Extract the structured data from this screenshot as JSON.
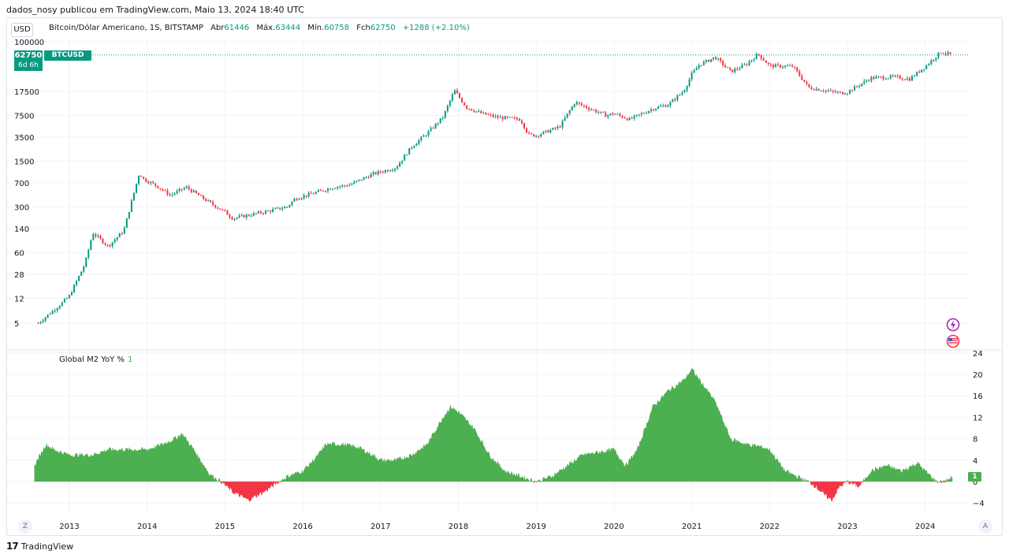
{
  "caption": "dados_nosy publicou em TradingView.com, Maio 13, 2024 18:40 UTC",
  "currency": "USD",
  "legend": {
    "name": "Bitcoin/Dólar Americano, 1S, BITSTAMP",
    "open_label": "Abr",
    "open": "61446",
    "high_label": "Máx.",
    "high": "63444",
    "low_label": "Mín.",
    "low": "60758",
    "close_label": "Fch",
    "close": "62750",
    "change": "+1288 (+2.10%)"
  },
  "price_tag": {
    "value": "62750",
    "countdown": "6d 6h",
    "symbol": "BTCUSD"
  },
  "indicator": {
    "name": "Global M2 YoY %",
    "value": "1",
    "tag": "1"
  },
  "zoom_left": "Z",
  "zoom_right": "A",
  "footer": {
    "logo": "17",
    "brand": "TradingView"
  },
  "colors": {
    "up": "#089981",
    "down": "#f23645",
    "m2_pos": "#4caf50",
    "m2_neg": "#f23645",
    "grid": "#f0f3fa"
  },
  "chart_data": [
    {
      "type": "line",
      "title": "",
      "series": [
        {
          "name": "BTCUSD",
          "x": [
            2012.6,
            2012.9,
            2013.0,
            2013.2,
            2013.3,
            2013.5,
            2013.7,
            2013.9,
            2013.95,
            2014.1,
            2014.3,
            2014.5,
            2014.8,
            2015.0,
            2015.1,
            2015.5,
            2015.8,
            2015.9,
            2016.4,
            2016.6,
            2016.9,
            2017.2,
            2017.4,
            2017.6,
            2017.8,
            2017.95,
            2018.1,
            2018.3,
            2018.5,
            2018.8,
            2018.9,
            2019.0,
            2019.3,
            2019.5,
            2019.6,
            2019.9,
            2020.0,
            2020.2,
            2020.5,
            2020.7,
            2020.9,
            2021.0,
            2021.1,
            2021.3,
            2021.5,
            2021.7,
            2021.85,
            2022.0,
            2022.3,
            2022.5,
            2022.9,
            2023.0,
            2023.3,
            2023.6,
            2023.8,
            2024.0,
            2024.2,
            2024.35
          ],
          "values": [
            5,
            10,
            13,
            40,
            120,
            75,
            130,
            1000,
            800,
            650,
            450,
            600,
            350,
            250,
            200,
            250,
            300,
            400,
            600,
            650,
            950,
            1200,
            2500,
            4000,
            7000,
            18000,
            10000,
            8000,
            7000,
            6500,
            3800,
            3700,
            5000,
            12000,
            10500,
            7500,
            8000,
            6500,
            9500,
            11000,
            18000,
            32000,
            45000,
            58000,
            35000,
            45000,
            65000,
            43000,
            42000,
            20000,
            16500,
            17000,
            28000,
            29000,
            27000,
            42000,
            70000,
            62750
          ]
        }
      ],
      "xlabel": "",
      "ylabel": "",
      "y_scale": "log",
      "yticks": [
        5,
        12,
        28,
        60,
        140,
        300,
        700,
        1500,
        3500,
        7500,
        17500,
        100000
      ],
      "xticks": [
        "2013",
        "2014",
        "2015",
        "2016",
        "2017",
        "2018",
        "2019",
        "2020",
        "2021",
        "2022",
        "2023",
        "2024"
      ],
      "xlim": [
        2012.2,
        2024.55
      ],
      "last_price": 62750,
      "grid": true
    },
    {
      "type": "area",
      "title": "Global M2 YoY %",
      "series": [
        {
          "name": "Global M2 YoY %",
          "x": [
            2012.55,
            2012.7,
            2012.8,
            2013.0,
            2013.3,
            2013.5,
            2013.7,
            2014.0,
            2014.2,
            2014.35,
            2014.45,
            2014.6,
            2014.8,
            2014.95,
            2015.1,
            2015.3,
            2015.5,
            2015.7,
            2015.8,
            2016.0,
            2016.2,
            2016.3,
            2016.5,
            2016.7,
            2016.9,
            2017.0,
            2017.2,
            2017.4,
            2017.6,
            2017.8,
            2017.9,
            2018.0,
            2018.2,
            2018.4,
            2018.6,
            2018.8,
            2019.0,
            2019.2,
            2019.4,
            2019.6,
            2019.8,
            2020.0,
            2020.15,
            2020.3,
            2020.5,
            2020.7,
            2020.9,
            2021.0,
            2021.15,
            2021.3,
            2021.5,
            2021.7,
            2021.9,
            2022.0,
            2022.2,
            2022.35,
            2022.5,
            2022.6,
            2022.7,
            2022.8,
            2022.9,
            2023.0,
            2023.15,
            2023.3,
            2023.5,
            2023.7,
            2023.9,
            2024.0,
            2024.15,
            2024.25,
            2024.35
          ],
          "values": [
            3,
            7,
            6,
            5,
            5,
            6,
            6,
            6,
            7,
            8,
            9,
            6,
            1.5,
            0,
            -2,
            -3.5,
            -2,
            0,
            1,
            2,
            5,
            7,
            7,
            6.5,
            5,
            4,
            4,
            5,
            7,
            12,
            14,
            13,
            10,
            5,
            2,
            1,
            0,
            1,
            3,
            5,
            5.5,
            6,
            3,
            6,
            14,
            17,
            19,
            21,
            18,
            15,
            8,
            7,
            6.5,
            6,
            2,
            1,
            0,
            -1,
            -2.5,
            -3.5,
            -1,
            0,
            -1,
            2,
            3,
            2,
            3.5,
            2,
            0,
            0,
            1
          ]
        }
      ],
      "xlabel": "",
      "ylabel": "",
      "yticks": [
        -4,
        0,
        4,
        8,
        12,
        16,
        20,
        24
      ],
      "ylim": [
        -5,
        24.5
      ],
      "xlim": [
        2012.2,
        2024.55
      ],
      "grid": true
    }
  ]
}
